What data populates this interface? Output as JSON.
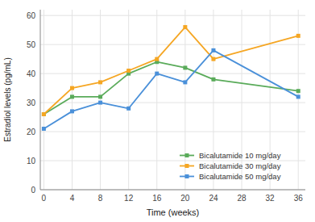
{
  "chart_data": {
    "type": "line",
    "xlabel": "Time (weeks)",
    "ylabel": "Estradiol levels (pg/mL)",
    "x": [
      0,
      4,
      8,
      12,
      16,
      20,
      24,
      36
    ],
    "xlim": [
      -0.5,
      37
    ],
    "ylim": [
      0,
      62
    ],
    "xticks": [
      0,
      4,
      8,
      12,
      16,
      20,
      24,
      28,
      32,
      36
    ],
    "yticks": [
      0,
      10,
      20,
      30,
      40,
      50,
      60
    ],
    "series": [
      {
        "name": "Bicalutamide 10 mg/day",
        "color": "#5aab5a",
        "values": [
          26,
          32,
          32,
          40,
          44,
          42,
          38,
          34
        ]
      },
      {
        "name": "Bicalutamide 30 mg/day",
        "color": "#f5a623",
        "values": [
          26,
          35,
          37,
          41,
          45,
          56,
          45,
          53
        ]
      },
      {
        "name": "Bicalutamide 50 mg/day",
        "color": "#4a90d9",
        "values": [
          21,
          27,
          30,
          28,
          40,
          37,
          48,
          32
        ]
      }
    ],
    "grid": true,
    "legend": "lower right",
    "marker": "square"
  }
}
